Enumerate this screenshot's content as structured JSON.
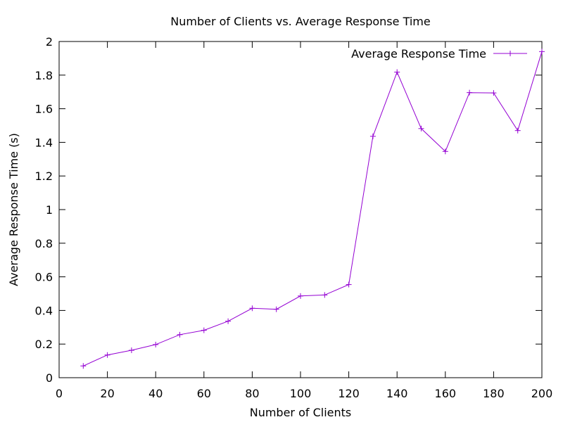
{
  "chart_data": {
    "type": "line",
    "title": "Number of Clients vs. Average Response Time",
    "xlabel": "Number of Clients",
    "ylabel": "Average Response Time (s)",
    "xlim": [
      0,
      200
    ],
    "ylim": [
      0,
      2
    ],
    "x_ticks": [
      0,
      20,
      40,
      60,
      80,
      100,
      120,
      140,
      160,
      180,
      200
    ],
    "y_ticks": [
      0,
      0.2,
      0.4,
      0.6,
      0.8,
      1,
      1.2,
      1.4,
      1.6,
      1.8,
      2
    ],
    "x_tick_labels": [
      "0",
      "20",
      "40",
      "60",
      "80",
      "100",
      "120",
      "140",
      "160",
      "180",
      "200"
    ],
    "y_tick_labels": [
      "0",
      "0.2",
      "0.4",
      "0.6",
      "0.8",
      "1",
      "1.2",
      "1.4",
      "1.6",
      "1.8",
      "2"
    ],
    "grid": false,
    "legend_position": "top-right",
    "series": [
      {
        "name": "Average Response Time",
        "color": "#9400d3",
        "marker": "plus",
        "x": [
          10,
          20,
          30,
          40,
          50,
          60,
          70,
          80,
          90,
          100,
          110,
          120,
          130,
          140,
          150,
          160,
          170,
          180,
          190,
          200
        ],
        "y": [
          0.07,
          0.135,
          0.163,
          0.197,
          0.256,
          0.282,
          0.336,
          0.413,
          0.407,
          0.486,
          0.492,
          0.554,
          1.436,
          1.818,
          1.482,
          1.346,
          1.696,
          1.694,
          1.47,
          1.94
        ]
      }
    ]
  }
}
